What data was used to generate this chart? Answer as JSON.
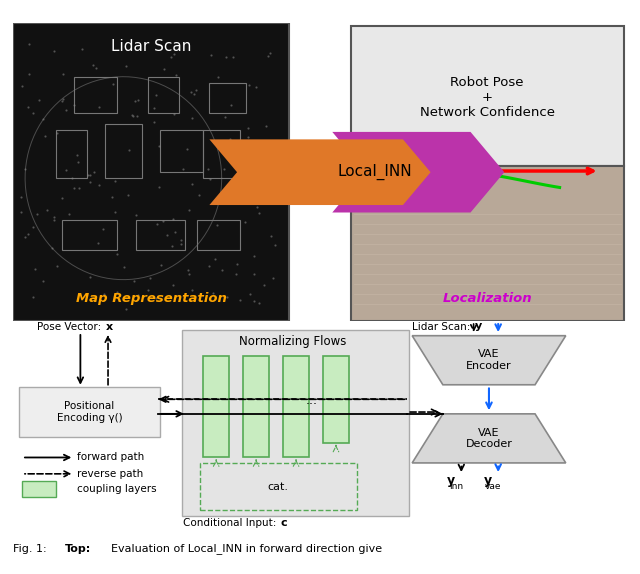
{
  "bg_color": "#ffffff",
  "top_panel": {
    "lidar_bg": "#111111",
    "lidar_text": "Lidar Scan",
    "lidar_text_color": "#ffffff",
    "map_text": "Map Representation",
    "map_text_color": "#FFA500",
    "robot_pose_text": "Robot Pose\n+\nNetwork Confidence",
    "robot_pose_text_color": "#000000",
    "localization_text": "Localization",
    "localization_text_color": "#CC00CC",
    "arrow_text": "Local_INN",
    "arrow_text_color": "#000000",
    "right_top_bg": "#e8e8e8",
    "right_bot_bg": "#b8a898"
  },
  "bottom_panel": {
    "pose_vector_label": "Pose Vector: ",
    "pose_vector_bold": "x",
    "lidar_scan_label": "Lidar Scan: ",
    "lidar_scan_bold": "y",
    "norm_flows_label": "Normalizing Flows",
    "cond_input_label": "Conditional Input: ",
    "cond_input_bold": "c",
    "cat_label": "cat.",
    "vae_encoder_label": "VAE\nEncoder",
    "vae_decoder_label": "VAE\nDecoder",
    "pos_enc_label": "Positional\nEncoding γ()",
    "legend_forward": "forward path",
    "legend_reverse": "reverse path",
    "legend_coupling": "coupling layers",
    "box_color": "#cccccc",
    "nf_box_color": "#dddddd",
    "coupling_fill": "#c8ecc0",
    "coupling_edge": "#55aa55",
    "blue_arrow": "#1166ff"
  },
  "caption_text": "Fig. 1: ",
  "caption_bold": "Top:",
  "caption_rest": " Evaluation of Local_INN in forward direction give"
}
